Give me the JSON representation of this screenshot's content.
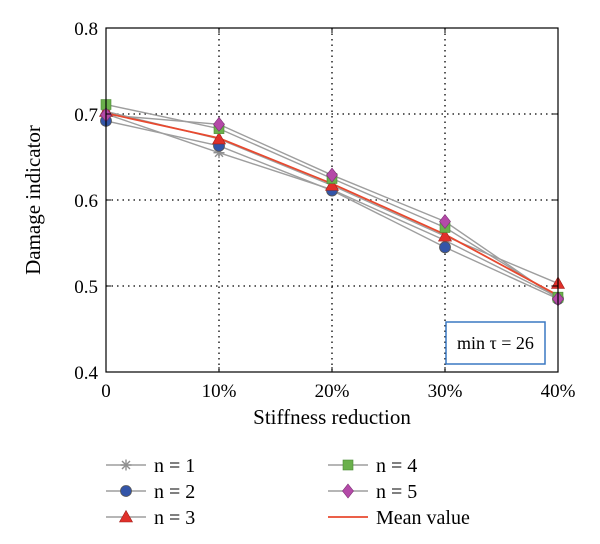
{
  "chart_data": {
    "type": "line",
    "xlabel": "Stiffness reduction",
    "ylabel": "Damage indicator",
    "categories": [
      "0",
      "10%",
      "20%",
      "30%",
      "40%"
    ],
    "ylim": [
      0.4,
      0.8
    ],
    "yticks": [
      "0.4",
      "0.5",
      "0.6",
      "0.7",
      "0.8"
    ],
    "grid": true,
    "legend_position": "bottom",
    "annotation": "min τ = 26",
    "series": [
      {
        "name": "n = 1",
        "marker": "star",
        "values": [
          0.7,
          0.655,
          0.612,
          0.553,
          0.487
        ],
        "color": "#9e9e9e",
        "marker_color": "#8f8f8f"
      },
      {
        "name": "n = 2",
        "marker": "circle",
        "values": [
          0.692,
          0.663,
          0.611,
          0.545,
          0.485
        ],
        "color": "#9e9e9e",
        "marker_color": "#3355a8"
      },
      {
        "name": "n = 3",
        "marker": "triangle",
        "values": [
          0.703,
          0.671,
          0.617,
          0.558,
          0.503
        ],
        "color": "#9e9e9e",
        "marker_color": "#e0302a"
      },
      {
        "name": "n = 4",
        "marker": "square",
        "values": [
          0.711,
          0.683,
          0.625,
          0.568,
          0.487
        ],
        "color": "#9e9e9e",
        "marker_color": "#6ab04c"
      },
      {
        "name": "n = 5",
        "marker": "diamond",
        "values": [
          0.699,
          0.688,
          0.629,
          0.575,
          0.485
        ],
        "color": "#9e9e9e",
        "marker_color": "#b44aa8"
      },
      {
        "name": "Mean value",
        "marker": "none",
        "values": [
          0.701,
          0.672,
          0.619,
          0.56,
          0.489
        ],
        "color": "#e8492f"
      }
    ]
  }
}
